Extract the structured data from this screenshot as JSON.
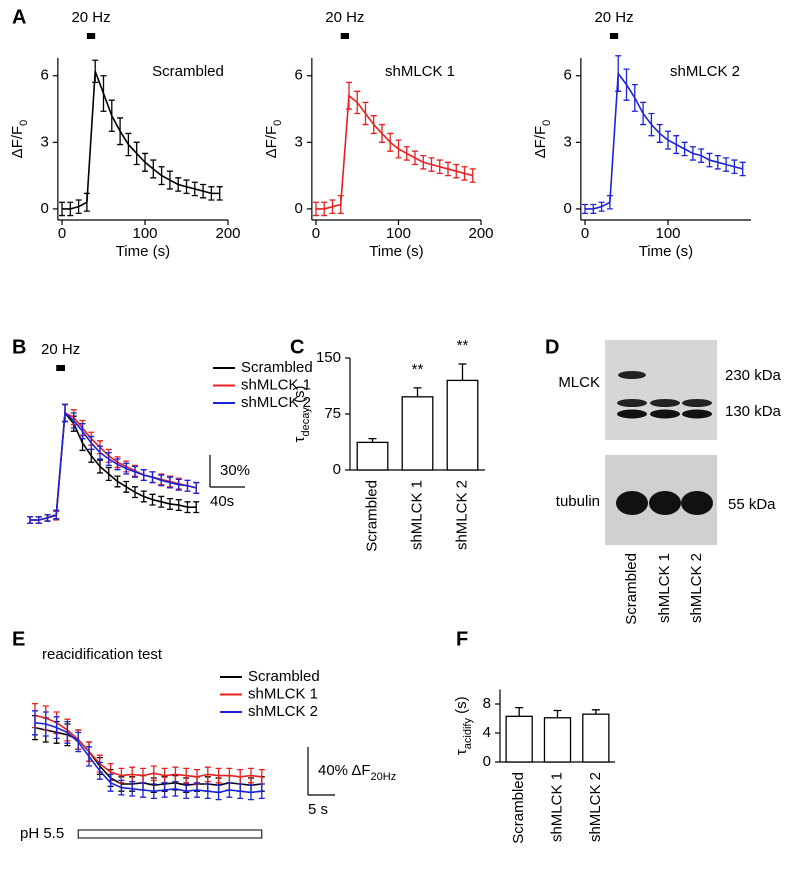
{
  "chart_data": [
    {
      "type": "line",
      "panel": "A",
      "x_label": "Time (s)",
      "y_label": [
        "ΔF/F",
        "0"
      ],
      "stimulus": {
        "label": "20 Hz",
        "start": 30,
        "end": 40
      },
      "x": [
        0,
        10,
        20,
        30,
        40,
        50,
        60,
        70,
        80,
        90,
        100,
        110,
        120,
        130,
        140,
        150,
        160,
        170,
        180,
        190
      ],
      "series": [
        {
          "name": "Scrambled",
          "color": "#000000",
          "values": [
            0,
            0,
            0.1,
            0.3,
            6.2,
            5.2,
            4.2,
            3.5,
            2.9,
            2.5,
            2.1,
            1.8,
            1.5,
            1.3,
            1.1,
            1.0,
            0.9,
            0.8,
            0.7,
            0.7
          ],
          "errors": [
            0.3,
            0.3,
            0.3,
            0.4,
            0.5,
            0.8,
            0.7,
            0.6,
            0.5,
            0.5,
            0.4,
            0.4,
            0.4,
            0.4,
            0.3,
            0.3,
            0.3,
            0.3,
            0.3,
            0.3
          ]
        }
      ],
      "xlim": [
        -5,
        200
      ],
      "ylim": [
        -0.5,
        6.8
      ],
      "xticks": [
        0,
        100,
        200
      ],
      "yticks": [
        0,
        3,
        6
      ]
    },
    {
      "type": "line",
      "x_label": "Time (s)",
      "y_label": [
        "ΔF/F",
        "0"
      ],
      "stimulus": {
        "label": "20 Hz",
        "start": 30,
        "end": 40
      },
      "x": [
        0,
        10,
        20,
        30,
        40,
        50,
        60,
        70,
        80,
        90,
        100,
        110,
        120,
        130,
        140,
        150,
        160,
        170,
        180,
        190
      ],
      "series": [
        {
          "name": "shMLCK 1",
          "color": "#e8201f",
          "values": [
            0,
            0,
            0.1,
            0.2,
            5.1,
            4.8,
            4.3,
            3.8,
            3.4,
            3.0,
            2.7,
            2.5,
            2.3,
            2.1,
            2.0,
            1.9,
            1.8,
            1.7,
            1.6,
            1.5
          ],
          "errors": [
            0.3,
            0.3,
            0.3,
            0.4,
            0.6,
            0.5,
            0.5,
            0.4,
            0.4,
            0.4,
            0.4,
            0.3,
            0.3,
            0.3,
            0.3,
            0.3,
            0.3,
            0.3,
            0.3,
            0.3
          ]
        }
      ],
      "xlim": [
        -5,
        200
      ],
      "ylim": [
        -0.5,
        6.8
      ],
      "xticks": [
        0,
        100,
        200
      ],
      "yticks": [
        0,
        3,
        6
      ]
    },
    {
      "type": "line",
      "x_label": "Time (s)",
      "y_label": [
        "ΔF/F",
        "0"
      ],
      "stimulus": {
        "label": "20 Hz",
        "start": 30,
        "end": 40
      },
      "x": [
        0,
        10,
        20,
        30,
        40,
        50,
        60,
        70,
        80,
        90,
        100,
        110,
        120,
        130,
        140,
        150,
        160,
        170,
        180,
        190
      ],
      "series": [
        {
          "name": "shMLCK 2",
          "color": "#1c24d8",
          "values": [
            0,
            0,
            0.1,
            0.3,
            6.1,
            5.6,
            5.0,
            4.3,
            3.8,
            3.4,
            3.1,
            2.9,
            2.7,
            2.5,
            2.4,
            2.2,
            2.1,
            2.0,
            1.9,
            1.8
          ],
          "errors": [
            0.2,
            0.2,
            0.2,
            0.3,
            0.8,
            0.7,
            0.6,
            0.5,
            0.5,
            0.4,
            0.4,
            0.4,
            0.3,
            0.3,
            0.3,
            0.3,
            0.3,
            0.3,
            0.3,
            0.3
          ]
        }
      ],
      "xlim": [
        -5,
        200
      ],
      "ylim": [
        -0.5,
        6.8
      ],
      "xticks": [
        0,
        100
      ],
      "yticks": [
        0,
        3,
        6
      ]
    },
    {
      "type": "line",
      "panel": "B",
      "stimulus": {
        "label": "20 Hz",
        "start": 30,
        "end": 40
      },
      "scale_bar": {
        "y": 30,
        "y_label": "30%",
        "x": 40,
        "x_label": "40s"
      },
      "x": [
        0,
        10,
        20,
        30,
        40,
        50,
        60,
        70,
        80,
        90,
        100,
        110,
        120,
        130,
        140,
        150,
        160,
        170,
        180,
        190
      ],
      "series": [
        {
          "name": "Scrambled",
          "color": "#000000",
          "values": [
            0,
            0,
            2,
            5,
            100,
            90,
            72,
            60,
            50,
            43,
            36,
            31,
            26,
            22,
            19,
            17,
            15,
            14,
            12,
            12
          ],
          "errors": [
            3,
            3,
            3,
            4,
            8,
            7,
            7,
            6,
            6,
            6,
            5,
            5,
            5,
            5,
            5,
            5,
            5,
            5,
            5,
            5
          ]
        },
        {
          "name": "shMLCK 1",
          "color": "#e8201f",
          "values": [
            0,
            0,
            2,
            4,
            100,
            96,
            86,
            76,
            68,
            60,
            54,
            50,
            46,
            42,
            40,
            38,
            36,
            34,
            32,
            30
          ],
          "errors": [
            3,
            3,
            3,
            4,
            8,
            7,
            7,
            6,
            6,
            6,
            5,
            5,
            5,
            5,
            5,
            5,
            5,
            5,
            5,
            5
          ]
        },
        {
          "name": "shMLCK 2",
          "color": "#1c24d8",
          "values": [
            0,
            0,
            2,
            5,
            100,
            93,
            83,
            72,
            63,
            57,
            52,
            48,
            45,
            42,
            40,
            37,
            35,
            33,
            32,
            30
          ],
          "errors": [
            3,
            3,
            3,
            4,
            8,
            7,
            7,
            6,
            6,
            6,
            5,
            5,
            5,
            5,
            5,
            5,
            5,
            5,
            5,
            5
          ]
        }
      ]
    },
    {
      "type": "bar",
      "panel": "C",
      "y_label": [
        "τ",
        "decay",
        " (s)"
      ],
      "categories": [
        "Scrambled",
        "shMLCK 1",
        "shMLCK 2"
      ],
      "values": [
        37,
        98,
        120
      ],
      "errors": [
        5,
        12,
        22
      ],
      "significance": [
        null,
        "**",
        "**"
      ],
      "color": "#ffffff",
      "ylim": [
        0,
        150
      ],
      "yticks": [
        0,
        75,
        150
      ]
    },
    {
      "type": "blot",
      "panel": "D",
      "categories": [
        "Scrambled",
        "shMLCK 1",
        "shMLCK 2"
      ],
      "rows": [
        {
          "label": "MLCK",
          "markers": [
            "230 kDa",
            "130 kDa"
          ]
        },
        {
          "label": "tubulin",
          "markers": [
            "55 kDa"
          ]
        }
      ]
    },
    {
      "type": "line",
      "panel": "E",
      "title": "reacidification test",
      "stimulus": {
        "label": "pH 5.5",
        "start": 8,
        "end": 42
      },
      "scale_bar": {
        "y": 40,
        "y_label": [
          "40% ΔF",
          "20Hz"
        ],
        "x": 5,
        "x_label": "5 s"
      },
      "x": [
        0,
        2,
        4,
        6,
        8,
        10,
        12,
        14,
        16,
        18,
        20,
        22,
        24,
        26,
        28,
        30,
        32,
        34,
        36,
        38,
        40,
        42
      ],
      "series": [
        {
          "name": "Scrambled",
          "color": "#000000",
          "values": [
            52,
            50,
            48,
            46,
            42,
            32,
            20,
            10,
            5,
            5,
            6,
            4,
            5,
            6,
            4,
            5,
            5,
            4,
            6,
            5,
            4,
            5
          ],
          "errors": [
            10,
            10,
            9,
            9,
            8,
            8,
            7,
            7,
            6,
            6,
            6,
            6,
            6,
            6,
            6,
            6,
            6,
            6,
            6,
            6,
            6,
            6
          ]
        },
        {
          "name": "shMLCK 1",
          "color": "#e8201f",
          "values": [
            62,
            60,
            56,
            50,
            42,
            32,
            22,
            15,
            12,
            13,
            12,
            14,
            12,
            13,
            12,
            11,
            13,
            12,
            12,
            11,
            12,
            11
          ],
          "errors": [
            10,
            10,
            9,
            9,
            8,
            8,
            7,
            7,
            6,
            6,
            6,
            6,
            6,
            6,
            6,
            6,
            6,
            6,
            6,
            6,
            6,
            6
          ]
        },
        {
          "name": "shMLCK 2",
          "color": "#1c24d8",
          "values": [
            56,
            55,
            52,
            48,
            40,
            28,
            16,
            6,
            2,
            1,
            0,
            -1,
            0,
            1,
            -1,
            0,
            -1,
            -2,
            0,
            -1,
            -2,
            -1
          ],
          "errors": [
            10,
            10,
            9,
            9,
            8,
            8,
            7,
            7,
            6,
            6,
            6,
            6,
            6,
            6,
            6,
            6,
            6,
            6,
            6,
            6,
            6,
            6
          ]
        }
      ]
    },
    {
      "type": "bar",
      "panel": "F",
      "y_label": [
        "τ",
        "acidify",
        " (s)"
      ],
      "categories": [
        "Scrambled",
        "shMLCK 1",
        "shMLCK 2"
      ],
      "values": [
        6.3,
        6.1,
        6.6
      ],
      "errors": [
        1.2,
        1.0,
        0.6
      ],
      "color": "#ffffff",
      "ylim": [
        0,
        10
      ],
      "yticks": [
        0,
        4,
        8
      ]
    }
  ]
}
